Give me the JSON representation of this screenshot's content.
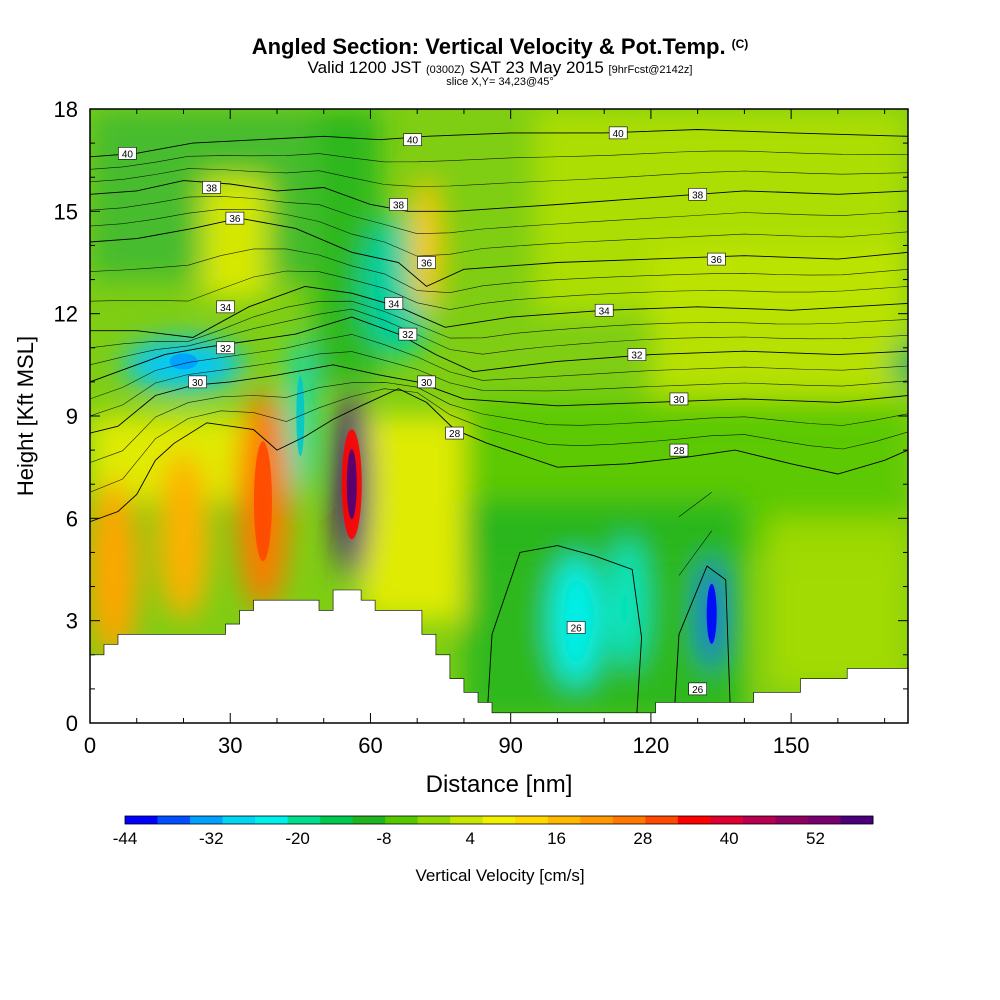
{
  "header": {
    "title": "Angled Section: Vertical Velocity & Pot.Temp.",
    "title_suffix": "(C)",
    "valid_main": "Valid 1200 JST",
    "valid_zone": "(0300Z)",
    "valid_date": "SAT 23 May 2015",
    "valid_fcst": "[9hrFcst@2142z]",
    "slice": "slice X,Y= 34,23@45°"
  },
  "chart_data": {
    "type": "heatmap",
    "xlabel": "Distance [nm]",
    "ylabel": "Height [Kft MSL]",
    "xlim": [
      0,
      175
    ],
    "ylim": [
      0,
      18
    ],
    "x_ticks": [
      0,
      30,
      60,
      90,
      120,
      150
    ],
    "y_ticks": [
      0,
      3,
      6,
      9,
      12,
      15,
      18
    ],
    "colorbar": {
      "label": "Vertical Velocity [cm/s]",
      "range": [
        -44,
        60
      ],
      "tick_labels": [
        "-44",
        "-32",
        "-20",
        "-8",
        "4",
        "16",
        "28",
        "40",
        "52"
      ],
      "tick_values": [
        -44,
        -32,
        -20,
        -8,
        4,
        16,
        28,
        40,
        52
      ],
      "colors": [
        "#0000ff",
        "#0050ff",
        "#00a0ff",
        "#00d6f2",
        "#00f0ec",
        "#00e08c",
        "#00c850",
        "#20b420",
        "#55c800",
        "#90d800",
        "#c8e600",
        "#f0f000",
        "#ffd800",
        "#ffb800",
        "#ff9800",
        "#ff7800",
        "#ff4800",
        "#ff0000",
        "#e00030",
        "#b80050",
        "#900060",
        "#780070",
        "#4a007a"
      ]
    },
    "velocity_features": [
      {
        "x": 5,
        "y": 4.5,
        "w": 31,
        "color": "#ffa500"
      },
      {
        "x": 20,
        "y": 10.5,
        "w": -30,
        "color": "#00c8ff"
      },
      {
        "x": 20,
        "y": 5.5,
        "w": 25,
        "color": "#ffb000"
      },
      {
        "x": 37,
        "y": 6.5,
        "w": 31,
        "color": "#ff7800"
      },
      {
        "x": 45,
        "y": 9,
        "w": -20,
        "color": "#00e0d0"
      },
      {
        "x": 56,
        "y": 7,
        "w": 57,
        "color": "#4a007a"
      },
      {
        "x": 66,
        "y": 12.8,
        "w": -16,
        "color": "#00d0a0"
      },
      {
        "x": 72,
        "y": 14,
        "w": 20,
        "color": "#ffc800"
      },
      {
        "x": 104,
        "y": 3,
        "w": -24,
        "color": "#00f0ec"
      },
      {
        "x": 115,
        "y": 3.5,
        "w": -20,
        "color": "#00e8c8"
      },
      {
        "x": 133,
        "y": 3.2,
        "w": -40,
        "color": "#0050ff"
      },
      {
        "x": 176,
        "y": 10.5,
        "w": -12,
        "color": "#00b060"
      }
    ],
    "theta_contours": [
      {
        "label": "26",
        "points": [
          [
            85,
            0.3
          ],
          [
            86,
            2.6
          ],
          [
            92,
            5
          ],
          [
            100,
            5.2
          ],
          [
            108,
            4.9
          ],
          [
            116,
            4.5
          ],
          [
            118,
            2.5
          ],
          [
            117,
            0.3
          ]
        ]
      },
      {
        "label": "26",
        "points": [
          [
            125,
            0.3
          ],
          [
            126,
            2.6
          ],
          [
            132,
            4.6
          ],
          [
            136,
            4.2
          ],
          [
            137,
            0.3
          ]
        ]
      },
      {
        "label": "28",
        "points": [
          [
            0,
            5.9
          ],
          [
            6,
            6.2
          ],
          [
            10,
            6.7
          ],
          [
            14,
            7.7
          ],
          [
            18,
            8.2
          ],
          [
            25,
            8.8
          ],
          [
            35,
            8.6
          ],
          [
            40,
            8
          ],
          [
            46,
            8.4
          ],
          [
            52,
            8.9
          ],
          [
            58,
            9.3
          ],
          [
            66,
            9.8
          ],
          [
            72,
            9.4
          ],
          [
            78,
            8.6
          ],
          [
            85,
            8.2
          ],
          [
            100,
            7.5
          ],
          [
            115,
            7.6
          ],
          [
            128,
            7.8
          ],
          [
            138,
            8.0
          ],
          [
            150,
            7.6
          ],
          [
            160,
            7.3
          ],
          [
            170,
            7.7
          ],
          [
            175,
            8.0
          ]
        ]
      },
      {
        "label": "30",
        "points": [
          [
            0,
            8.5
          ],
          [
            6,
            8.7
          ],
          [
            14,
            9.6
          ],
          [
            22,
            9.9
          ],
          [
            30,
            10.0
          ],
          [
            40,
            10.2
          ],
          [
            52,
            10.5
          ],
          [
            62,
            10.2
          ],
          [
            70,
            10.0
          ],
          [
            80,
            9.5
          ],
          [
            100,
            9.3
          ],
          [
            120,
            9.4
          ],
          [
            140,
            9.5
          ],
          [
            160,
            9.4
          ],
          [
            175,
            9.6
          ]
        ]
      },
      {
        "label": "32",
        "points": [
          [
            0,
            10.0
          ],
          [
            8,
            10.4
          ],
          [
            16,
            10.8
          ],
          [
            24,
            11.0
          ],
          [
            34,
            11.2
          ],
          [
            44,
            11.4
          ],
          [
            56,
            11.9
          ],
          [
            66,
            11.4
          ],
          [
            74,
            10.8
          ],
          [
            82,
            10.3
          ],
          [
            100,
            10.6
          ],
          [
            120,
            10.8
          ],
          [
            140,
            10.9
          ],
          [
            160,
            10.8
          ],
          [
            175,
            10.9
          ]
        ]
      },
      {
        "label": "34",
        "points": [
          [
            0,
            11.5
          ],
          [
            10,
            11.5
          ],
          [
            22,
            11.3
          ],
          [
            34,
            12.2
          ],
          [
            46,
            12.8
          ],
          [
            56,
            12.6
          ],
          [
            66,
            12.2
          ],
          [
            76,
            11.6
          ],
          [
            90,
            11.9
          ],
          [
            110,
            12.1
          ],
          [
            130,
            12.2
          ],
          [
            150,
            12.1
          ],
          [
            175,
            12.3
          ]
        ]
      },
      {
        "label": "36",
        "points": [
          [
            0,
            14.1
          ],
          [
            10,
            14.2
          ],
          [
            22,
            14.5
          ],
          [
            32,
            14.8
          ],
          [
            44,
            14.5
          ],
          [
            56,
            13.8
          ],
          [
            66,
            13.5
          ],
          [
            72,
            12.8
          ],
          [
            80,
            13.3
          ],
          [
            100,
            13.5
          ],
          [
            120,
            13.6
          ],
          [
            140,
            13.7
          ],
          [
            160,
            13.6
          ],
          [
            175,
            13.8
          ]
        ]
      },
      {
        "label": "38",
        "points": [
          [
            0,
            15.5
          ],
          [
            10,
            15.6
          ],
          [
            20,
            15.9
          ],
          [
            30,
            15.8
          ],
          [
            40,
            15.6
          ],
          [
            50,
            15.7
          ],
          [
            60,
            15.2
          ],
          [
            68,
            15.0
          ],
          [
            78,
            15.0
          ],
          [
            100,
            15.2
          ],
          [
            120,
            15.4
          ],
          [
            140,
            15.6
          ],
          [
            160,
            15.5
          ],
          [
            175,
            15.6
          ]
        ]
      },
      {
        "label": "40",
        "points": [
          [
            0,
            16.6
          ],
          [
            10,
            16.7
          ],
          [
            22,
            17.0
          ],
          [
            36,
            17.1
          ],
          [
            50,
            17.2
          ],
          [
            62,
            17.1
          ],
          [
            72,
            17.2
          ],
          [
            90,
            17.3
          ],
          [
            110,
            17.3
          ],
          [
            130,
            17.4
          ],
          [
            150,
            17.3
          ],
          [
            175,
            17.2
          ]
        ]
      }
    ],
    "terrain": [
      [
        0,
        2.0
      ],
      [
        3,
        2.0
      ],
      [
        3,
        2.3
      ],
      [
        6,
        2.3
      ],
      [
        6,
        2.6
      ],
      [
        29,
        2.6
      ],
      [
        29,
        2.9
      ],
      [
        32,
        2.9
      ],
      [
        32,
        3.3
      ],
      [
        35,
        3.3
      ],
      [
        35,
        3.6
      ],
      [
        49,
        3.6
      ],
      [
        49,
        3.3
      ],
      [
        52,
        3.3
      ],
      [
        52,
        3.9
      ],
      [
        58,
        3.9
      ],
      [
        58,
        3.6
      ],
      [
        61,
        3.6
      ],
      [
        61,
        3.3
      ],
      [
        71,
        3.3
      ],
      [
        71,
        2.6
      ],
      [
        74,
        2.6
      ],
      [
        74,
        2.0
      ],
      [
        77,
        2.0
      ],
      [
        77,
        1.3
      ],
      [
        80,
        1.3
      ],
      [
        80,
        0.9
      ],
      [
        83,
        0.9
      ],
      [
        83,
        0.6
      ],
      [
        86,
        0.6
      ],
      [
        86,
        0.3
      ],
      [
        121,
        0.3
      ],
      [
        121,
        0.6
      ],
      [
        142,
        0.6
      ],
      [
        142,
        0.9
      ],
      [
        152,
        0.9
      ],
      [
        152,
        1.3
      ],
      [
        162,
        1.3
      ],
      [
        162,
        1.6
      ],
      [
        175,
        1.6
      ]
    ]
  }
}
